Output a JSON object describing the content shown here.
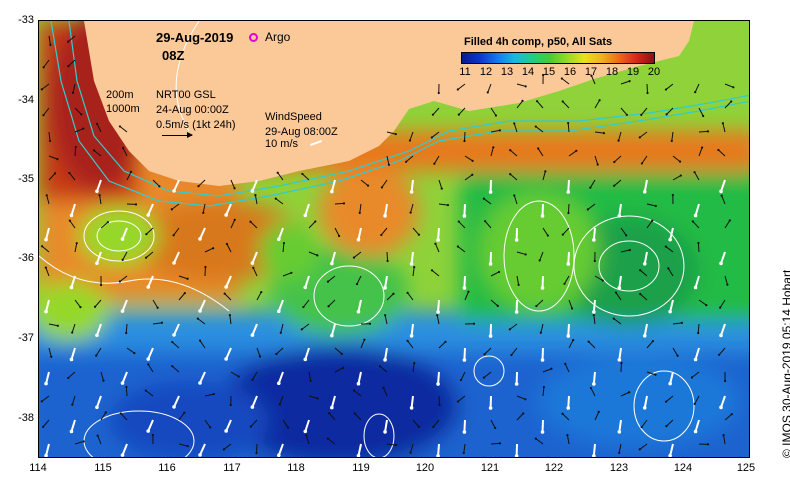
{
  "map": {
    "title_date": "29-Aug-2019",
    "title_time": "08Z",
    "argo_label": "Argo",
    "argo_marker_color": "#e000e0",
    "colorbar": {
      "title": "Filled 4h comp, p50, All Sats",
      "ticks": [
        "11",
        "12",
        "13",
        "14",
        "15",
        "16",
        "17",
        "18",
        "19",
        "20"
      ],
      "palette": [
        "#0a1a8c",
        "#0a36c8",
        "#1478e8",
        "#1eb4e6",
        "#22cc88",
        "#44cc33",
        "#96d82a",
        "#e8e020",
        "#f2b020",
        "#ec6a1a",
        "#d42818",
        "#8c1010"
      ]
    },
    "contours": {
      "c200": "200m",
      "c1000": "1000m"
    },
    "currents": {
      "source": "NRT00 GSL",
      "date": "24-Aug 00:00Z",
      "scale": "0.5m/s (1kt 24h)"
    },
    "wind": {
      "title": "WindSpeed",
      "date": "29-Aug 08:00Z",
      "speed": "10 m/s"
    },
    "land_color": "#fbc898",
    "y_axis": [
      "-33",
      "-34",
      "-35",
      "-36",
      "-37",
      "-38"
    ],
    "x_axis": [
      "114",
      "115",
      "116",
      "117",
      "118",
      "119",
      "120",
      "121",
      "122",
      "123",
      "124",
      "125"
    ],
    "credit": "© IMOS 30-Aug-2019 05:14 Hobart"
  }
}
